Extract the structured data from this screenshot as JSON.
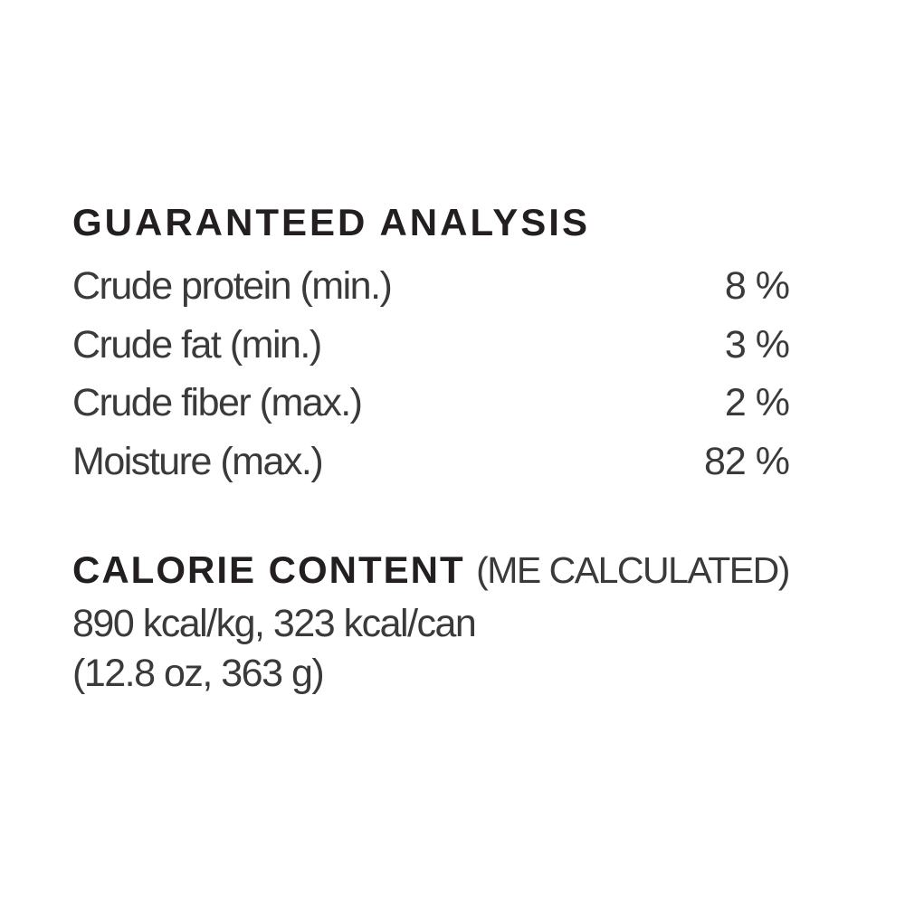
{
  "colors": {
    "background": "#ffffff",
    "heading_text": "#231f20",
    "body_text": "#3a3a3a"
  },
  "guaranteed_analysis": {
    "title": "GUARANTEED ANALYSIS",
    "rows": [
      {
        "label": "Crude protein (min.)",
        "value": "8 %"
      },
      {
        "label": "Crude fat (min.)",
        "value": "3 %"
      },
      {
        "label": "Crude fiber (max.)",
        "value": "2 %"
      },
      {
        "label": "Moisture (max.)",
        "value": "82 %"
      }
    ]
  },
  "calorie_content": {
    "title": "CALORIE CONTENT",
    "subtitle": "(ME CALCULATED)",
    "kcal_line": "890 kcal/kg, 323 kcal/can",
    "weight_line": "(12.8 oz, 363 g)"
  }
}
